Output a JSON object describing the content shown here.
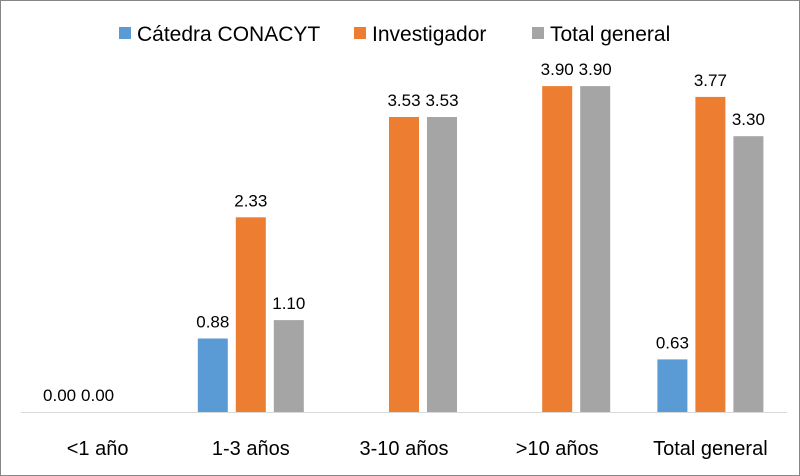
{
  "chart_data": {
    "type": "bar",
    "title": "",
    "xlabel": "",
    "ylabel": "",
    "ylim": [
      0,
      4.2
    ],
    "grid": false,
    "legend_position": "top",
    "categories": [
      "<1 año",
      "1-3 años",
      "3-10 años",
      ">10 años",
      "Total general"
    ],
    "series": [
      {
        "name": "Cátedra CONACYT",
        "color": "#5B9BD5",
        "values": [
          0.0,
          0.88,
          null,
          null,
          0.63
        ]
      },
      {
        "name": "Investigador",
        "color": "#ED7D31",
        "values": [
          0.0,
          2.33,
          3.53,
          3.9,
          3.77
        ]
      },
      {
        "name": "Total general",
        "color": "#A5A5A5",
        "values": [
          null,
          1.1,
          3.53,
          3.9,
          3.3
        ]
      }
    ]
  }
}
